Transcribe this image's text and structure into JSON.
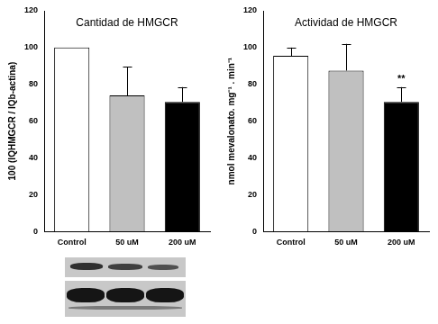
{
  "chart_data": [
    {
      "type": "bar",
      "title": "Cantidad de HMGCR",
      "y_label": "100 (IQHMGCR / IQb-actina)",
      "categories": [
        "Control",
        "50 uM",
        "200 uM"
      ],
      "values": [
        100,
        74,
        70.5
      ],
      "errors": [
        null,
        15.5,
        8
      ],
      "colors": [
        "#ffffff",
        "#c0c0c0",
        "#000000"
      ],
      "ylim": [
        0,
        120
      ],
      "yticks": [
        0,
        20,
        40,
        60,
        80,
        100,
        120
      ],
      "grid": false
    },
    {
      "type": "bar",
      "title": "Actividad de HMGCR",
      "y_label": "nmol mevalonato. mg⁻¹ . min⁻¹",
      "categories": [
        "Control",
        "50 uM",
        "200 uM"
      ],
      "values": [
        95.5,
        87.5,
        70.5
      ],
      "errors": [
        4.5,
        14.5,
        8
      ],
      "colors": [
        "#ffffff",
        "#c0c0c0",
        "#000000"
      ],
      "annotations": [
        {
          "category": "200 uM",
          "text": "**"
        }
      ],
      "ylim": [
        0,
        120
      ],
      "yticks": [
        0,
        20,
        40,
        60,
        80,
        100,
        120
      ],
      "grid": false
    }
  ]
}
